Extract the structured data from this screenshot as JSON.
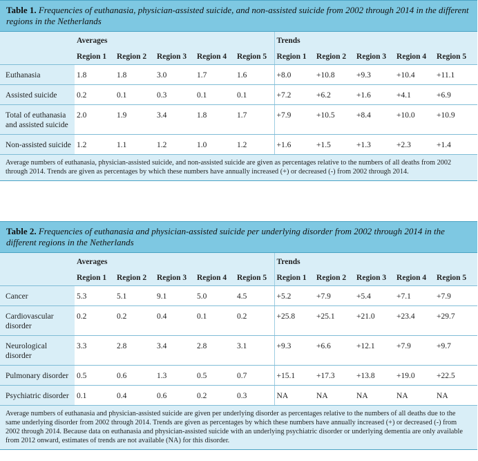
{
  "table1": {
    "label": "Table 1.",
    "title": "Frequencies of euthanasia, physician-assisted suicide, and non-assisted suicide from 2002 through 2014 in the different regions in the Netherlands",
    "group_averages": "Averages",
    "group_trends": "Trends",
    "columns": [
      "Region 1",
      "Region 2",
      "Region 3",
      "Region 4",
      "Region 5",
      "Region 1",
      "Region 2",
      "Region 3",
      "Region 4",
      "Region 5"
    ],
    "rows": [
      {
        "label": "Euthanasia",
        "cells": [
          "1.8",
          "1.8",
          "3.0",
          "1.7",
          "1.6",
          "+8.0",
          "+10.8",
          "+9.3",
          "+10.4",
          "+11.1"
        ]
      },
      {
        "label": "Assisted suicide",
        "cells": [
          "0.2",
          "0.1",
          "0.3",
          "0.1",
          "0.1",
          "+7.2",
          "+6.2",
          "+1.6",
          "+4.1",
          "+6.9"
        ]
      },
      {
        "label": "Total of euthanasia and assisted suicide",
        "cells": [
          "2.0",
          "1.9",
          "3.4",
          "1.8",
          "1.7",
          "+7.9",
          "+10.5",
          "+8.4",
          "+10.0",
          "+10.9"
        ]
      },
      {
        "label": "Non-assisted suicide",
        "cells": [
          "1.2",
          "1.1",
          "1.2",
          "1.0",
          "1.2",
          "+1.6",
          "+1.5",
          "+1.3",
          "+2.3",
          "+1.4"
        ]
      }
    ],
    "note": "Average numbers of euthanasia, physician-assisted suicide, and non-assisted suicide are given as percentages relative to the numbers of all deaths from 2002 through 2014. Trends are given as percentages by which these numbers have annually increased (+) or decreased (-) from 2002 through 2014."
  },
  "table2": {
    "label": "Table 2.",
    "title": "Frequencies of euthanasia and physician-assisted suicide per underlying disorder from 2002 through 2014 in the different regions in the Netherlands",
    "group_averages": "Averages",
    "group_trends": "Trends",
    "columns": [
      "Region 1",
      "Region 2",
      "Region 3",
      "Region 4",
      "Region 5",
      "Region 1",
      "Region 2",
      "Region 3",
      "Region 4",
      "Region 5"
    ],
    "rows": [
      {
        "label": "Cancer",
        "cells": [
          "5.3",
          "5.1",
          "9.1",
          "5.0",
          "4.5",
          "+5.2",
          "+7.9",
          "+5.4",
          "+7.1",
          "+7.9"
        ]
      },
      {
        "label": "Cardiovascular disorder",
        "cells": [
          "0.2",
          "0.2",
          "0.4",
          "0.1",
          "0.2",
          "+25.8",
          "+25.1",
          "+21.0",
          "+23.4",
          "+29.7"
        ]
      },
      {
        "label": "Neurological disorder",
        "cells": [
          "3.3",
          "2.8",
          "3.4",
          "2.8",
          "3.1",
          "+9.3",
          "+6.6",
          "+12.1",
          "+7.9",
          "+9.7"
        ]
      },
      {
        "label": "Pulmonary disorder",
        "cells": [
          "0.5",
          "0.6",
          "1.3",
          "0.5",
          "0.7",
          "+15.1",
          "+17.3",
          "+13.8",
          "+19.0",
          "+22.5"
        ]
      },
      {
        "label": "Psychiatric disorder",
        "cells": [
          "0.1",
          "0.4",
          "0.6",
          "0.2",
          "0.3",
          "NA",
          "NA",
          "NA",
          "NA",
          "NA"
        ]
      }
    ],
    "note": "Average numbers of euthanasia and physician-assisted suicide are given per underlying disorder as percentages relative to the numbers of all deaths due to the same underlying disorder from 2002 through 2014. Trends are given as percentages by which these numbers have annually increased (+) or decreased (-) from 2002 through 2014. Because data on euthanasia and physician-assisted suicide with an underlying psychiatric disorder or underlying dementia are only available from 2012 onward, estimates of trends are not available (NA) for this disorder."
  }
}
